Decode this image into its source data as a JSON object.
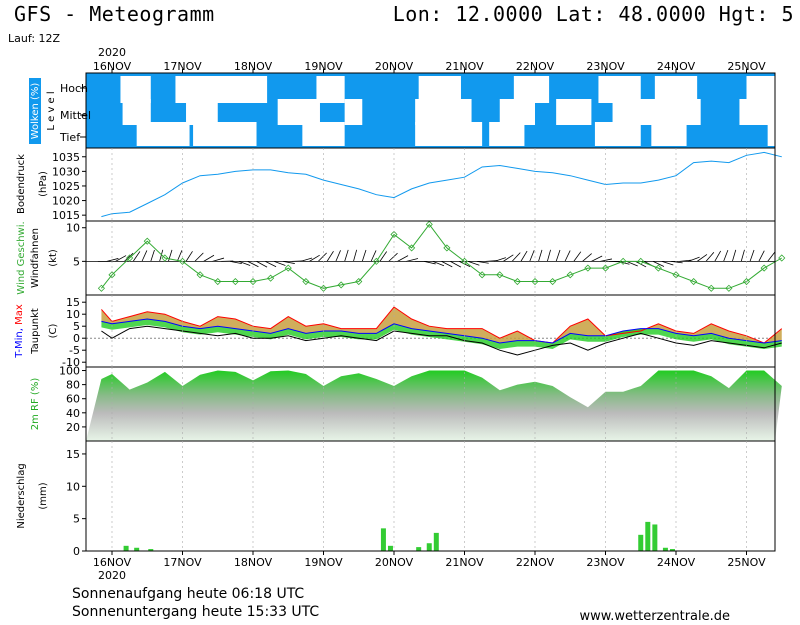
{
  "header": {
    "title": "GFS - Meteogramm",
    "location": "Lon: 12.0000  Lat: 48.0000  Hgt: 5",
    "run": "Lauf: 12Z"
  },
  "footer": {
    "sunrise": "Sonnenaufgang heute 06:18 UTC",
    "sunset": "Sonnenuntergang heute 15:33 UTC",
    "site": "www.wetterzentrale.de"
  },
  "colors": {
    "cloud_bg": "#1199ee",
    "pressure_line": "#1199ee",
    "wind_line": "#33aa33",
    "rh_fill": "#22cc22",
    "precip_bar": "#33cc33",
    "tmax_fill": "#c8a040",
    "tmin_line": "#0000ff",
    "tmax_line": "#ff0000",
    "dew_line": "#000000"
  },
  "time_axis": {
    "year": "2020",
    "days": [
      "16NOV",
      "17NOV",
      "18NOV",
      "19NOV",
      "20NOV",
      "21NOV",
      "22NOV",
      "23NOV",
      "24NOV",
      "25NOV"
    ]
  },
  "panel_labels": {
    "clouds": [
      "Wolken (%)",
      "L e v e l"
    ],
    "cloud_levels": [
      "Hoch",
      "Mittel",
      "Tief"
    ],
    "pressure": [
      "Bodendruck",
      "(hPa)"
    ],
    "wind": [
      "Wind Geschwi.",
      "Windfahnen",
      "(kt)"
    ],
    "temp": [
      "T-Min, Max",
      "Taupunkt",
      "(C)"
    ],
    "rh": [
      "2m RF (%)"
    ],
    "precip": [
      "Niederschlag",
      "(mm)"
    ]
  },
  "chart_data": [
    {
      "type": "heatmap",
      "name": "clouds",
      "levels": [
        "Hoch",
        "Mittel",
        "Tief"
      ],
      "x_unit": "days from 16NOV 00UTC",
      "clear_sky_segments": {
        "Hoch": [
          [
            0.12,
            0.55
          ],
          [
            0.9,
            1.8
          ],
          [
            1.75,
            2.2
          ],
          [
            2.9,
            3.3
          ],
          [
            4.35,
            4.95
          ],
          [
            5.7,
            6.2
          ],
          [
            6.9,
            7.5
          ],
          [
            7.7,
            8.3
          ],
          [
            9.0,
            9.45
          ]
        ],
        "Mittel": [
          [
            0.15,
            0.55
          ],
          [
            1.05,
            1.5
          ],
          [
            2.35,
            2.95
          ],
          [
            3.3,
            3.55
          ],
          [
            4.3,
            5.1
          ],
          [
            5.5,
            6.0
          ],
          [
            6.3,
            6.8
          ],
          [
            7.1,
            8.35
          ],
          [
            8.9,
            9.4
          ]
        ],
        "Tief": [
          [
            0.35,
            1.1
          ],
          [
            1.15,
            2.05
          ],
          [
            2.7,
            3.3
          ],
          [
            4.3,
            5.25
          ],
          [
            5.35,
            5.85
          ],
          [
            6.85,
            7.5
          ],
          [
            7.65,
            8.15
          ],
          [
            9.3,
            9.5
          ]
        ]
      }
    },
    {
      "type": "line",
      "name": "pressure",
      "ylabel": "Bodendruck (hPa)",
      "ylim": [
        1013,
        1038
      ],
      "yticks": [
        1015,
        1020,
        1025,
        1030,
        1035
      ],
      "x": [
        -0.15,
        0.0,
        0.25,
        0.5,
        0.75,
        1.0,
        1.25,
        1.5,
        1.75,
        2.0,
        2.25,
        2.5,
        2.75,
        3.0,
        3.25,
        3.5,
        3.75,
        4.0,
        4.25,
        4.5,
        4.75,
        5.0,
        5.25,
        5.5,
        5.75,
        6.0,
        6.25,
        6.5,
        6.75,
        7.0,
        7.25,
        7.5,
        7.75,
        8.0,
        8.25,
        8.5,
        8.75,
        9.0,
        9.25,
        9.5
      ],
      "y": [
        1014.5,
        1015.5,
        1016,
        1019,
        1022,
        1026,
        1028.5,
        1029,
        1030,
        1030.5,
        1030.5,
        1029.5,
        1029,
        1027,
        1025.5,
        1024,
        1022,
        1021,
        1024,
        1026,
        1027,
        1028,
        1031.5,
        1032,
        1031,
        1030,
        1029.5,
        1028.5,
        1027,
        1025.5,
        1026,
        1026,
        1027,
        1028.5,
        1033,
        1033.5,
        1033,
        1035.5,
        1036.5,
        1035
      ]
    },
    {
      "type": "line",
      "name": "wind_speed",
      "ylabel": "Wind Geschwi. (kt)",
      "ylim": [
        0,
        11
      ],
      "yticks": [
        5,
        10
      ],
      "x": [
        -0.15,
        0.0,
        0.25,
        0.5,
        0.75,
        1.0,
        1.25,
        1.5,
        1.75,
        2.0,
        2.25,
        2.5,
        2.75,
        3.0,
        3.25,
        3.5,
        3.75,
        4.0,
        4.25,
        4.5,
        4.75,
        5.0,
        5.25,
        5.5,
        5.75,
        6.0,
        6.25,
        6.5,
        6.75,
        7.0,
        7.25,
        7.5,
        7.75,
        8.0,
        8.25,
        8.5,
        8.75,
        9.0,
        9.25,
        9.5
      ],
      "y": [
        1,
        3,
        5.5,
        8,
        5.5,
        5,
        3,
        2,
        2,
        2,
        2.5,
        4,
        2,
        1,
        1.5,
        2,
        5,
        9,
        7,
        10.5,
        7,
        5,
        3,
        3,
        2,
        2,
        2,
        3,
        4,
        4,
        5,
        5,
        4,
        3,
        2,
        1,
        1,
        2,
        4,
        5.5
      ]
    },
    {
      "type": "area",
      "name": "temperature",
      "ylabel": "T-Min, Max / Taupunkt (C)",
      "ylim": [
        -12,
        18
      ],
      "yticks": [
        -10,
        -5,
        0,
        5,
        10,
        15
      ],
      "series": [
        {
          "name": "T-Max",
          "x": [
            -0.15,
            0.0,
            0.25,
            0.5,
            0.75,
            1.0,
            1.25,
            1.5,
            1.75,
            2.0,
            2.25,
            2.5,
            2.75,
            3.0,
            3.25,
            3.5,
            3.75,
            4.0,
            4.25,
            4.5,
            4.75,
            5.0,
            5.25,
            5.5,
            5.75,
            6.0,
            6.25,
            6.5,
            6.75,
            7.0,
            7.25,
            7.5,
            7.75,
            8.0,
            8.25,
            8.5,
            8.75,
            9.0,
            9.25,
            9.5
          ],
          "y": [
            12,
            7,
            9,
            11,
            10,
            7,
            5,
            9,
            8,
            5,
            4,
            9,
            5,
            6,
            4,
            4,
            4,
            13,
            8,
            5,
            4,
            4,
            4,
            0,
            3,
            -1,
            -2,
            5,
            8,
            1,
            2,
            3,
            6,
            3,
            2,
            6,
            3,
            1,
            -2,
            4
          ]
        },
        {
          "name": "T-Min",
          "x": [
            -0.15,
            0.0,
            0.25,
            0.5,
            0.75,
            1.0,
            1.25,
            1.5,
            1.75,
            2.0,
            2.25,
            2.5,
            2.75,
            3.0,
            3.25,
            3.5,
            3.75,
            4.0,
            4.25,
            4.5,
            4.75,
            5.0,
            5.25,
            5.5,
            5.75,
            6.0,
            6.25,
            6.5,
            6.75,
            7.0,
            7.25,
            7.5,
            7.75,
            8.0,
            8.25,
            8.5,
            8.75,
            9.0,
            9.25,
            9.5
          ],
          "y": [
            7,
            6,
            7,
            8,
            7,
            5,
            4,
            5,
            4,
            3,
            2,
            4,
            2,
            3,
            3,
            2,
            2,
            6,
            4,
            3,
            2,
            1,
            0,
            -2,
            -1,
            -1,
            -2,
            2,
            1,
            1,
            3,
            4,
            4,
            2,
            1,
            2,
            0,
            -1,
            -2,
            -1
          ]
        },
        {
          "name": "Taupunkt",
          "x": [
            -0.15,
            0.0,
            0.25,
            0.5,
            0.75,
            1.0,
            1.25,
            1.5,
            1.75,
            2.0,
            2.25,
            2.5,
            2.75,
            3.0,
            3.25,
            3.5,
            3.75,
            4.0,
            4.25,
            4.5,
            4.75,
            5.0,
            5.25,
            5.5,
            5.75,
            6.0,
            6.25,
            6.5,
            6.75,
            7.0,
            7.25,
            7.5,
            7.75,
            8.0,
            8.25,
            8.5,
            8.75,
            9.0,
            9.25,
            9.5
          ],
          "y": [
            3,
            0,
            4,
            5,
            4,
            3,
            2,
            1,
            2,
            0,
            0,
            1,
            -1,
            0,
            1,
            0,
            -1,
            3,
            2,
            1,
            1,
            -1,
            -2,
            -5,
            -7,
            -5,
            -3,
            -2,
            -5,
            -2,
            0,
            2,
            0,
            -2,
            -3,
            -1,
            -2,
            -3,
            -4,
            -2
          ]
        }
      ]
    },
    {
      "type": "area",
      "name": "relative_humidity",
      "ylabel": "2m RF (%)",
      "ylim": [
        0,
        105
      ],
      "yticks": [
        20,
        40,
        60,
        80,
        100
      ],
      "x": [
        -0.15,
        0.0,
        0.25,
        0.5,
        0.75,
        1.0,
        1.25,
        1.5,
        1.75,
        2.0,
        2.25,
        2.5,
        2.75,
        3.0,
        3.25,
        3.5,
        3.75,
        4.0,
        4.25,
        4.5,
        4.75,
        5.0,
        5.25,
        5.5,
        5.75,
        6.0,
        6.25,
        6.5,
        6.75,
        7.0,
        7.25,
        7.5,
        7.75,
        8.0,
        8.25,
        8.5,
        8.75,
        9.0,
        9.25,
        9.5
      ],
      "y": [
        88,
        95,
        73,
        83,
        98,
        78,
        94,
        100,
        98,
        86,
        99,
        100,
        95,
        78,
        92,
        96,
        88,
        78,
        92,
        100,
        100,
        100,
        90,
        72,
        80,
        84,
        78,
        62,
        48,
        70,
        70,
        78,
        100,
        100,
        100,
        92,
        75,
        100,
        100,
        78
      ]
    },
    {
      "type": "bar",
      "name": "precipitation",
      "ylabel": "Niederschlag (mm)",
      "ylim": [
        0,
        17
      ],
      "yticks": [
        0,
        5,
        10,
        15
      ],
      "x": [
        0.2,
        0.35,
        0.55,
        3.85,
        3.95,
        4.35,
        4.5,
        4.6,
        7.5,
        7.6,
        7.7,
        7.85,
        7.95
      ],
      "values": [
        0.8,
        0.5,
        0.3,
        3.5,
        0.8,
        0.6,
        1.2,
        2.8,
        2.5,
        4.5,
        4.1,
        0.5,
        0.3
      ]
    }
  ]
}
